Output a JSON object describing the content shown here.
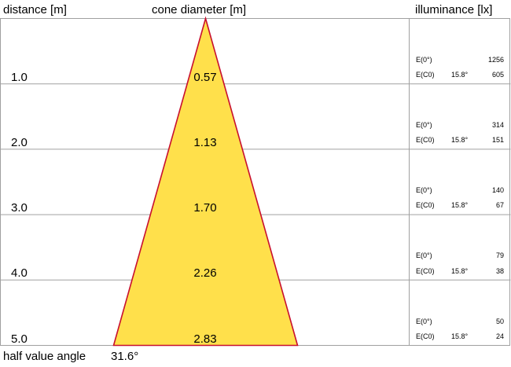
{
  "headers": {
    "distance": "distance [m]",
    "cone_diameter": "cone diameter [m]",
    "illuminance": "illuminance [lx]"
  },
  "colors": {
    "cone_fill": "#ffe04b",
    "cone_edge": "#c8102e",
    "grid": "#a0a0a0"
  },
  "rows": [
    {
      "distance": "1.0",
      "diameter": "0.57",
      "e0_label": "E(0°)",
      "e0_value": "1256",
      "ec0_label": "E(C0)",
      "ec0_angle": "15.8°",
      "ec0_value": "605"
    },
    {
      "distance": "2.0",
      "diameter": "1.13",
      "e0_label": "E(0°)",
      "e0_value": "314",
      "ec0_label": "E(C0)",
      "ec0_angle": "15.8°",
      "ec0_value": "151"
    },
    {
      "distance": "3.0",
      "diameter": "1.70",
      "e0_label": "E(0°)",
      "e0_value": "140",
      "ec0_label": "E(C0)",
      "ec0_angle": "15.8°",
      "ec0_value": "67"
    },
    {
      "distance": "4.0",
      "diameter": "2.26",
      "e0_label": "E(0°)",
      "e0_value": "79",
      "ec0_label": "E(C0)",
      "ec0_angle": "15.8°",
      "ec0_value": "38"
    },
    {
      "distance": "5.0",
      "diameter": "2.83",
      "e0_label": "E(0°)",
      "e0_value": "50",
      "ec0_label": "E(C0)",
      "ec0_angle": "15.8°",
      "ec0_value": "24"
    }
  ],
  "footer": {
    "label": "half value angle",
    "value": "31.6°"
  }
}
